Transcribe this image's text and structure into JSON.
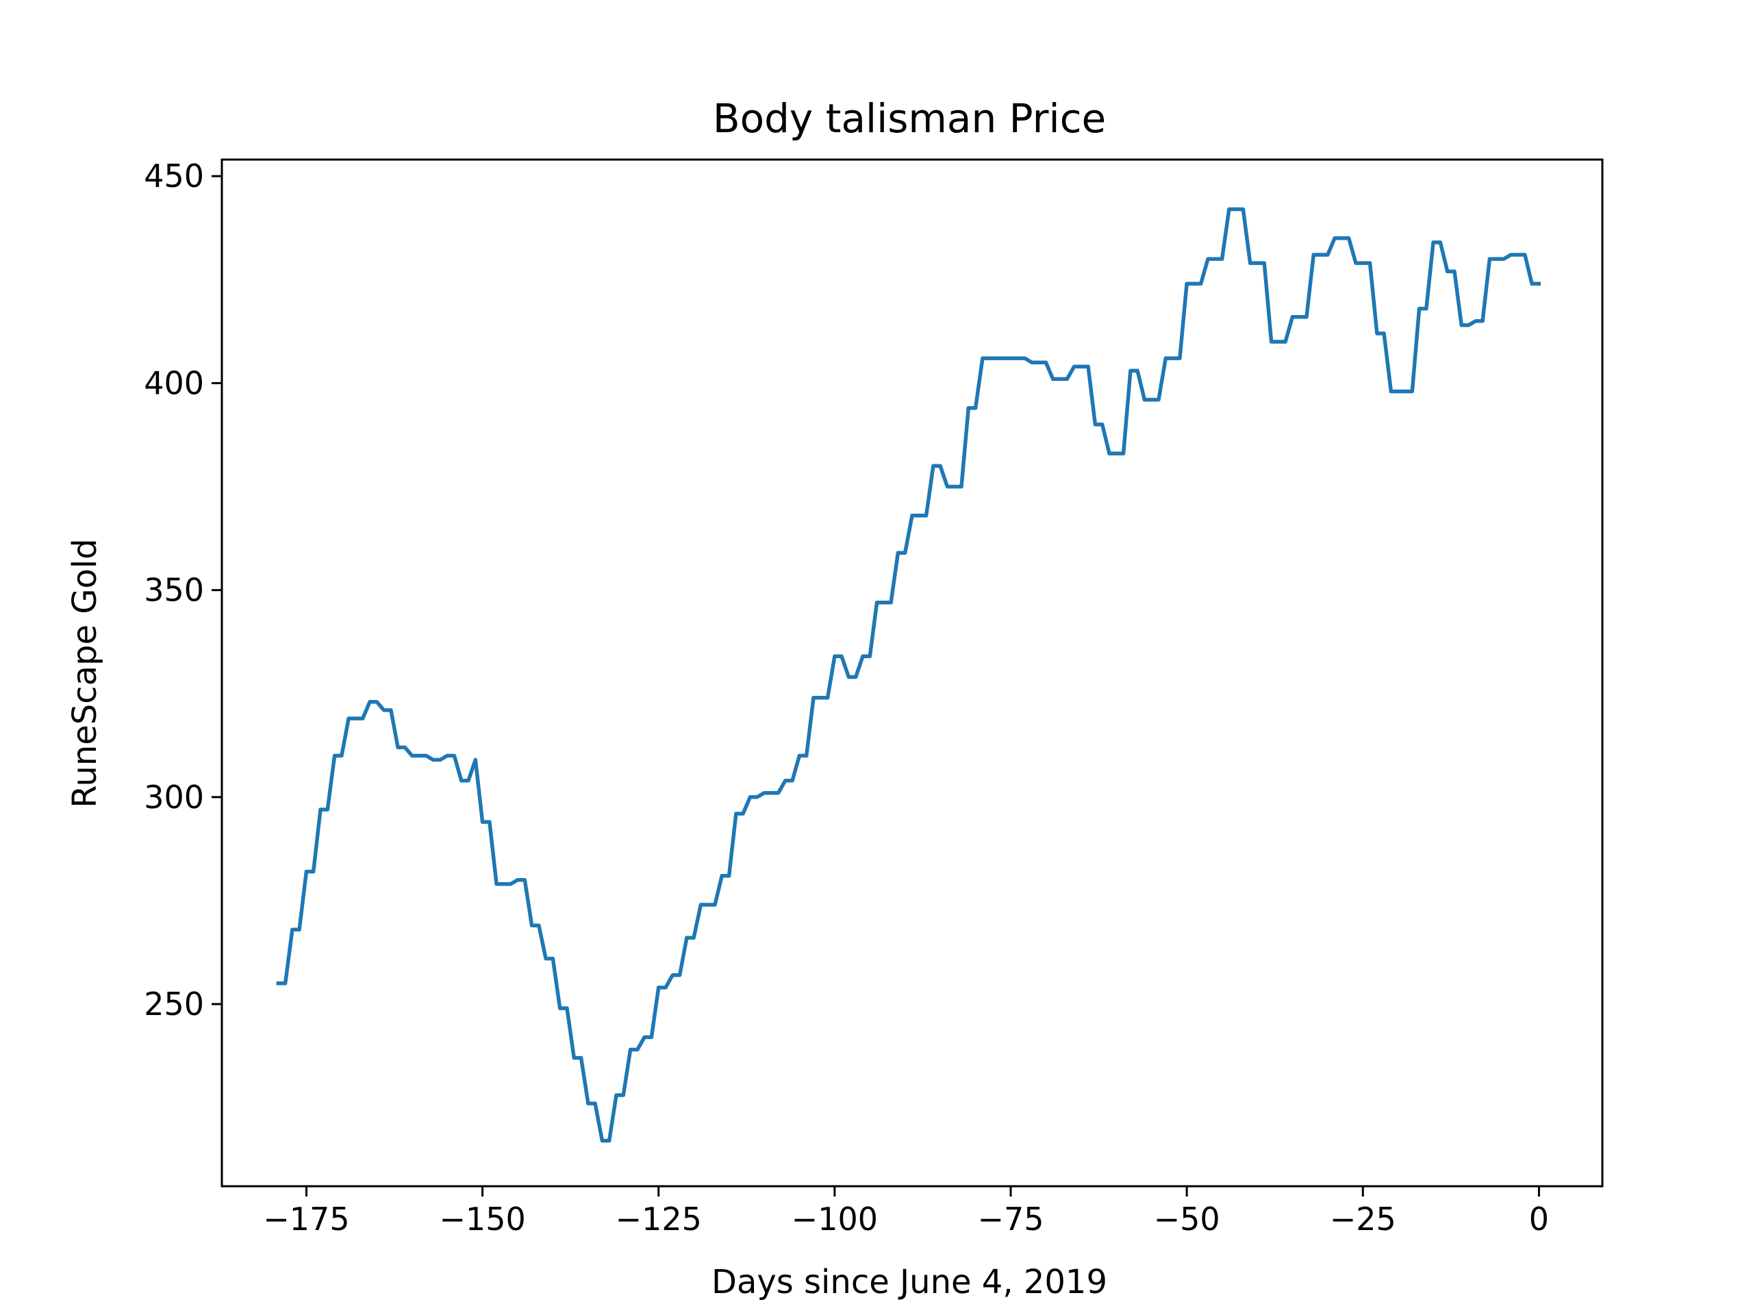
{
  "chart_data": {
    "type": "line",
    "title": "Body talisman Price",
    "xlabel": "Days since June 4, 2019",
    "ylabel": "RuneScape Gold",
    "xlim": [
      -187,
      9
    ],
    "ylim": [
      206,
      454
    ],
    "x_ticks": [
      -175,
      -150,
      -125,
      -100,
      -75,
      -50,
      -25,
      0
    ],
    "x_tick_labels": [
      "−175",
      "−150",
      "−125",
      "−100",
      "−75",
      "−50",
      "−25",
      "0"
    ],
    "y_ticks": [
      250,
      300,
      350,
      400,
      450
    ],
    "y_tick_labels": [
      "250",
      "300",
      "350",
      "400",
      "450"
    ],
    "grid": false,
    "legend": false,
    "series": [
      {
        "color": "#1f77b4",
        "x": [
          -179,
          -178,
          -177,
          -176,
          -175,
          -174,
          -173,
          -172,
          -171,
          -170,
          -169,
          -168,
          -167,
          -166,
          -165,
          -164,
          -163,
          -162,
          -161,
          -160,
          -159,
          -158,
          -157,
          -156,
          -155,
          -154,
          -153,
          -152,
          -151,
          -150,
          -149,
          -148,
          -147,
          -146,
          -145,
          -144,
          -143,
          -142,
          -141,
          -140,
          -139,
          -138,
          -137,
          -136,
          -135,
          -134,
          -133,
          -132,
          -131,
          -130,
          -129,
          -128,
          -127,
          -126,
          -125,
          -124,
          -123,
          -122,
          -121,
          -120,
          -119,
          -118,
          -117,
          -116,
          -115,
          -114,
          -113,
          -112,
          -111,
          -110,
          -109,
          -108,
          -107,
          -106,
          -105,
          -104,
          -103,
          -102,
          -101,
          -100,
          -99,
          -98,
          -97,
          -96,
          -95,
          -94,
          -93,
          -92,
          -91,
          -90,
          -89,
          -88,
          -87,
          -86,
          -85,
          -84,
          -83,
          -82,
          -81,
          -80,
          -79,
          -78,
          -77,
          -76,
          -75,
          -74,
          -73,
          -72,
          -71,
          -70,
          -69,
          -68,
          -67,
          -66,
          -65,
          -64,
          -63,
          -62,
          -61,
          -60,
          -59,
          -58,
          -57,
          -56,
          -55,
          -54,
          -53,
          -52,
          -51,
          -50,
          -49,
          -48,
          -47,
          -46,
          -45,
          -44,
          -43,
          -42,
          -41,
          -40,
          -39,
          -38,
          -37,
          -36,
          -35,
          -34,
          -33,
          -32,
          -31,
          -30,
          -29,
          -28,
          -27,
          -26,
          -25,
          -24,
          -23,
          -22,
          -21,
          -20,
          -19,
          -18,
          -17,
          -16,
          -15,
          -14,
          -13,
          -12,
          -11,
          -10,
          -9,
          -8,
          -7,
          -6,
          -5,
          -4,
          -3,
          -2,
          -1,
          0
        ],
        "y": [
          255,
          255,
          268,
          268,
          282,
          282,
          297,
          297,
          310,
          310,
          319,
          319,
          319,
          323,
          323,
          321,
          321,
          312,
          312,
          310,
          310,
          310,
          309,
          309,
          310,
          310,
          304,
          304,
          309,
          294,
          294,
          279,
          279,
          279,
          280,
          280,
          269,
          269,
          261,
          261,
          249,
          249,
          237,
          237,
          226,
          226,
          217,
          217,
          228,
          228,
          239,
          239,
          242,
          242,
          254,
          254,
          257,
          257,
          266,
          266,
          274,
          274,
          274,
          281,
          281,
          296,
          296,
          300,
          300,
          301,
          301,
          301,
          304,
          304,
          310,
          310,
          324,
          324,
          324,
          334,
          334,
          329,
          329,
          334,
          334,
          347,
          347,
          347,
          359,
          359,
          368,
          368,
          368,
          380,
          380,
          375,
          375,
          375,
          394,
          394,
          406,
          406,
          406,
          406,
          406,
          406,
          406,
          405,
          405,
          405,
          401,
          401,
          401,
          404,
          404,
          404,
          390,
          390,
          383,
          383,
          383,
          403,
          403,
          396,
          396,
          396,
          406,
          406,
          406,
          424,
          424,
          424,
          430,
          430,
          430,
          442,
          442,
          442,
          429,
          429,
          429,
          410,
          410,
          410,
          416,
          416,
          416,
          431,
          431,
          431,
          435,
          435,
          435,
          429,
          429,
          429,
          412,
          412,
          398,
          398,
          398,
          398,
          418,
          418,
          434,
          434,
          427,
          427,
          414,
          414,
          415,
          415,
          430,
          430,
          430,
          431,
          431,
          431,
          424,
          424
        ]
      }
    ]
  }
}
